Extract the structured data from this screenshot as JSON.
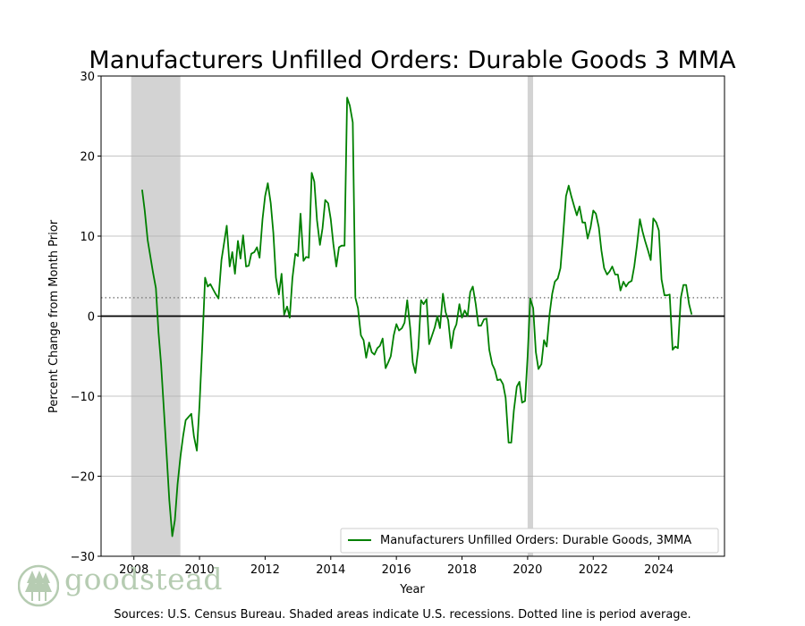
{
  "chart_data": {
    "type": "line",
    "title": "Manufacturers Unfilled Orders: Durable Goods 3 MMA",
    "xlabel": "Year",
    "ylabel": "Percent Change from Month Prior",
    "xlim": [
      2007.0,
      2026.0
    ],
    "ylim": [
      -30,
      30
    ],
    "x_ticks": [
      2008,
      2010,
      2012,
      2014,
      2016,
      2018,
      2020,
      2022,
      2024
    ],
    "y_ticks": [
      -30,
      -20,
      -10,
      0,
      10,
      20,
      30
    ],
    "y_tick_labels": [
      "−30",
      "−20",
      "−10",
      "0",
      "10",
      "20",
      "30"
    ],
    "grid": "horizontal",
    "average_line": 2.3,
    "recessions": [
      [
        2007.917,
        2009.417
      ],
      [
        2020.0,
        2020.167
      ]
    ],
    "legend_position": "lower-right",
    "colors": {
      "series": "#008000",
      "recession": "#d3d3d3",
      "average": "#808080",
      "zero": "#000000"
    },
    "series": [
      {
        "name": "Manufacturers Unfilled Orders: Durable Goods, 3MMA",
        "points": [
          [
            2008.25,
            15.8
          ],
          [
            2008.33,
            13.2
          ],
          [
            2008.42,
            9.5
          ],
          [
            2008.58,
            5.5
          ],
          [
            2008.67,
            3.5
          ],
          [
            2008.75,
            -2.0
          ],
          [
            2008.83,
            -6.0
          ],
          [
            2008.92,
            -12.0
          ],
          [
            2009.0,
            -17.5
          ],
          [
            2009.08,
            -23.0
          ],
          [
            2009.17,
            -27.5
          ],
          [
            2009.25,
            -25.5
          ],
          [
            2009.33,
            -21.0
          ],
          [
            2009.42,
            -17.5
          ],
          [
            2009.5,
            -15.0
          ],
          [
            2009.58,
            -13.0
          ],
          [
            2009.75,
            -12.2
          ],
          [
            2009.83,
            -15.0
          ],
          [
            2009.92,
            -16.8
          ],
          [
            2010.0,
            -11.0
          ],
          [
            2010.08,
            -4.0
          ],
          [
            2010.17,
            4.8
          ],
          [
            2010.25,
            3.7
          ],
          [
            2010.33,
            4.0
          ],
          [
            2010.42,
            3.3
          ],
          [
            2010.5,
            2.7
          ],
          [
            2010.58,
            2.2
          ],
          [
            2010.67,
            7.0
          ],
          [
            2010.75,
            9.2
          ],
          [
            2010.83,
            11.3
          ],
          [
            2010.92,
            6.2
          ],
          [
            2011.0,
            8.0
          ],
          [
            2011.08,
            5.3
          ],
          [
            2011.17,
            9.4
          ],
          [
            2011.25,
            7.2
          ],
          [
            2011.33,
            10.1
          ],
          [
            2011.42,
            6.2
          ],
          [
            2011.5,
            6.3
          ],
          [
            2011.58,
            7.8
          ],
          [
            2011.67,
            8.0
          ],
          [
            2011.75,
            8.6
          ],
          [
            2011.83,
            7.3
          ],
          [
            2011.92,
            12.1
          ],
          [
            2012.0,
            15.0
          ],
          [
            2012.08,
            16.6
          ],
          [
            2012.17,
            14.1
          ],
          [
            2012.25,
            10.4
          ],
          [
            2012.33,
            4.8
          ],
          [
            2012.42,
            2.7
          ],
          [
            2012.5,
            5.3
          ],
          [
            2012.58,
            0.2
          ],
          [
            2012.67,
            1.2
          ],
          [
            2012.75,
            -0.2
          ],
          [
            2012.83,
            4.7
          ],
          [
            2012.92,
            7.8
          ],
          [
            2013.0,
            7.5
          ],
          [
            2013.08,
            12.8
          ],
          [
            2013.17,
            6.9
          ],
          [
            2013.25,
            7.4
          ],
          [
            2013.33,
            7.3
          ],
          [
            2013.42,
            17.9
          ],
          [
            2013.5,
            16.8
          ],
          [
            2013.58,
            12.0
          ],
          [
            2013.67,
            8.9
          ],
          [
            2013.75,
            11.0
          ],
          [
            2013.83,
            14.5
          ],
          [
            2013.92,
            14.1
          ],
          [
            2014.0,
            12.1
          ],
          [
            2014.08,
            9.0
          ],
          [
            2014.17,
            6.2
          ],
          [
            2014.25,
            8.6
          ],
          [
            2014.33,
            8.8
          ],
          [
            2014.42,
            8.8
          ],
          [
            2014.5,
            27.3
          ],
          [
            2014.58,
            26.3
          ],
          [
            2014.67,
            24.2
          ],
          [
            2014.75,
            2.3
          ],
          [
            2014.83,
            1.0
          ],
          [
            2014.92,
            -2.4
          ],
          [
            2015.0,
            -3.0
          ],
          [
            2015.08,
            -5.2
          ],
          [
            2015.17,
            -3.3
          ],
          [
            2015.25,
            -4.5
          ],
          [
            2015.33,
            -4.8
          ],
          [
            2015.42,
            -4.0
          ],
          [
            2015.5,
            -3.7
          ],
          [
            2015.58,
            -2.8
          ],
          [
            2015.67,
            -6.5
          ],
          [
            2015.75,
            -5.8
          ],
          [
            2015.83,
            -5.0
          ],
          [
            2015.92,
            -2.4
          ],
          [
            2016.0,
            -1.0
          ],
          [
            2016.08,
            -1.8
          ],
          [
            2016.17,
            -1.5
          ],
          [
            2016.25,
            -0.8
          ],
          [
            2016.33,
            2.0
          ],
          [
            2016.42,
            -1.5
          ],
          [
            2016.5,
            -5.8
          ],
          [
            2016.58,
            -7.1
          ],
          [
            2016.67,
            -4.0
          ],
          [
            2016.75,
            2.0
          ],
          [
            2016.83,
            1.5
          ],
          [
            2016.92,
            2.1
          ],
          [
            2017.0,
            -3.5
          ],
          [
            2017.08,
            -2.5
          ],
          [
            2017.17,
            -1.4
          ],
          [
            2017.25,
            0.0
          ],
          [
            2017.33,
            -1.5
          ],
          [
            2017.42,
            2.8
          ],
          [
            2017.5,
            0.5
          ],
          [
            2017.58,
            -0.5
          ],
          [
            2017.67,
            -4.0
          ],
          [
            2017.75,
            -1.8
          ],
          [
            2017.83,
            -1.0
          ],
          [
            2017.92,
            1.5
          ],
          [
            2018.0,
            -0.2
          ],
          [
            2018.08,
            0.7
          ],
          [
            2018.17,
            0.0
          ],
          [
            2018.25,
            3.0
          ],
          [
            2018.33,
            3.7
          ],
          [
            2018.42,
            1.5
          ],
          [
            2018.5,
            -1.2
          ],
          [
            2018.58,
            -1.2
          ],
          [
            2018.67,
            -0.4
          ],
          [
            2018.75,
            -0.3
          ],
          [
            2018.83,
            -4.2
          ],
          [
            2018.92,
            -6.0
          ],
          [
            2019.0,
            -6.7
          ],
          [
            2019.08,
            -8.0
          ],
          [
            2019.17,
            -7.9
          ],
          [
            2019.25,
            -8.5
          ],
          [
            2019.33,
            -10.2
          ],
          [
            2019.42,
            -15.8
          ],
          [
            2019.5,
            -15.8
          ],
          [
            2019.58,
            -11.8
          ],
          [
            2019.67,
            -8.8
          ],
          [
            2019.75,
            -8.2
          ],
          [
            2019.83,
            -10.8
          ],
          [
            2019.92,
            -10.6
          ],
          [
            2020.0,
            -5.0
          ],
          [
            2020.08,
            2.2
          ],
          [
            2020.17,
            1.0
          ],
          [
            2020.25,
            -4.5
          ],
          [
            2020.33,
            -6.6
          ],
          [
            2020.42,
            -6.0
          ],
          [
            2020.5,
            -3.0
          ],
          [
            2020.58,
            -3.8
          ],
          [
            2020.67,
            0.3
          ],
          [
            2020.75,
            2.8
          ],
          [
            2020.83,
            4.3
          ],
          [
            2020.92,
            4.7
          ],
          [
            2021.0,
            6.0
          ],
          [
            2021.08,
            10.0
          ],
          [
            2021.17,
            15.0
          ],
          [
            2021.25,
            16.3
          ],
          [
            2021.33,
            15.0
          ],
          [
            2021.42,
            13.7
          ],
          [
            2021.5,
            12.6
          ],
          [
            2021.58,
            13.7
          ],
          [
            2021.67,
            11.7
          ],
          [
            2021.75,
            11.7
          ],
          [
            2021.83,
            9.7
          ],
          [
            2021.92,
            11.1
          ],
          [
            2022.0,
            13.2
          ],
          [
            2022.08,
            12.8
          ],
          [
            2022.17,
            11.1
          ],
          [
            2022.25,
            8.2
          ],
          [
            2022.33,
            6.0
          ],
          [
            2022.42,
            5.2
          ],
          [
            2022.5,
            5.6
          ],
          [
            2022.58,
            6.2
          ],
          [
            2022.67,
            5.2
          ],
          [
            2022.75,
            5.2
          ],
          [
            2022.83,
            3.2
          ],
          [
            2022.92,
            4.3
          ],
          [
            2023.0,
            3.7
          ],
          [
            2023.08,
            4.2
          ],
          [
            2023.17,
            4.4
          ],
          [
            2023.25,
            6.2
          ],
          [
            2023.33,
            8.8
          ],
          [
            2023.42,
            12.1
          ],
          [
            2023.5,
            10.6
          ],
          [
            2023.58,
            9.4
          ],
          [
            2023.67,
            8.2
          ],
          [
            2023.75,
            7.0
          ],
          [
            2023.83,
            12.2
          ],
          [
            2023.92,
            11.7
          ],
          [
            2024.0,
            10.7
          ],
          [
            2024.08,
            4.6
          ],
          [
            2024.17,
            2.6
          ],
          [
            2024.25,
            2.6
          ],
          [
            2024.33,
            2.7
          ],
          [
            2024.42,
            -4.2
          ],
          [
            2024.5,
            -3.8
          ],
          [
            2024.58,
            -4.0
          ],
          [
            2024.67,
            2.3
          ],
          [
            2024.75,
            3.9
          ],
          [
            2024.83,
            3.9
          ],
          [
            2024.92,
            1.5
          ],
          [
            2025.0,
            0.2
          ]
        ]
      }
    ]
  },
  "source_text": "Sources: U.S. Census Bureau. Shaded areas indicate U.S. recessions. Dotted line is period average.",
  "logo": {
    "text": "goodstead"
  }
}
